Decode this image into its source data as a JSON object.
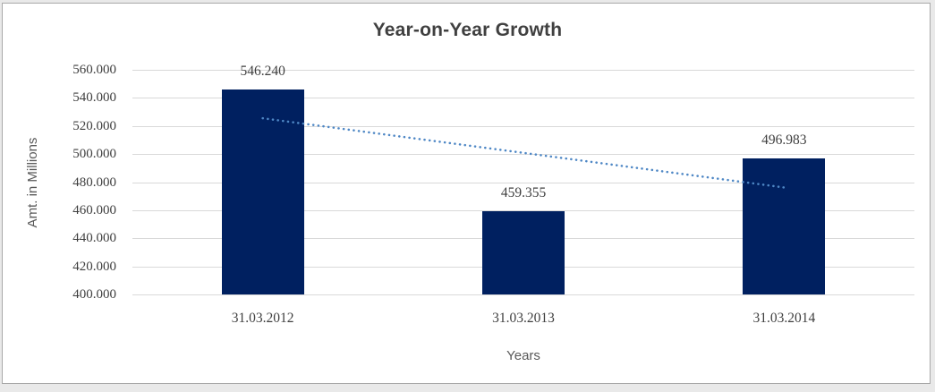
{
  "chart_data": {
    "type": "bar",
    "title": "Year-on-Year Growth",
    "xlabel": "Years",
    "ylabel": "Amt. in Millions",
    "categories": [
      "31.03.2012",
      "31.03.2013",
      "31.03.2014"
    ],
    "values": [
      546240,
      459355,
      496983
    ],
    "data_labels": [
      "546.240",
      "459.355",
      "496.983"
    ],
    "ylim": [
      400000,
      560000
    ],
    "ytick_step": 20000,
    "ytick_labels": [
      "400.000",
      "420.000",
      "440.000",
      "460.000",
      "480.000",
      "500.000",
      "520.000",
      "540.000",
      "560.000"
    ],
    "grid": true,
    "legend": "none",
    "trendline": {
      "type": "linear",
      "style": "dotted",
      "start_value": 525500,
      "end_value": 476200
    }
  },
  "colors": {
    "bar": "#002060",
    "trendline": "#4E87C5",
    "gridline": "#D9D9D9",
    "title_text": "#404040",
    "tick_text": "#3F3F3F",
    "axis_title_text": "#595959",
    "frame_border": "#A8A8A8"
  }
}
